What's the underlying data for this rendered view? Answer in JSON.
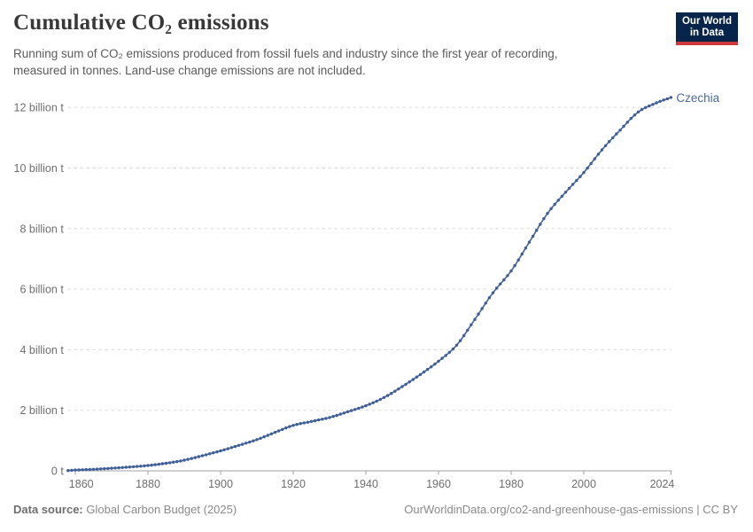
{
  "header": {
    "title": "Cumulative CO₂ emissions",
    "subtitle_lines": [
      "Running sum of CO₂ emissions produced from fossil fuels and industry since the first year of recording,",
      "measured in tonnes. Land-use change emissions are not included."
    ]
  },
  "logo": {
    "line1": "Our World",
    "line2": "in Data"
  },
  "footer": {
    "source_label": "Data source:",
    "source_value": " Global Carbon Budget (2025)",
    "credit": "OurWorldinData.org/co2-and-greenhouse-gas-emissions | CC BY"
  },
  "chart_data": {
    "type": "line",
    "title": "Cumulative CO₂ emissions",
    "entity_label": "Czechia",
    "y_unit": "billion tonnes",
    "xlim": [
      1858,
      2024
    ],
    "ylim": [
      0,
      12.33
    ],
    "grid": "dashed-horizontal",
    "legend_position": "end-of-line-label",
    "x_ticks": [
      {
        "year": 1860,
        "label": "1860"
      },
      {
        "year": 1880,
        "label": "1880"
      },
      {
        "year": 1900,
        "label": "1900"
      },
      {
        "year": 1920,
        "label": "1920"
      },
      {
        "year": 1940,
        "label": "1940"
      },
      {
        "year": 1960,
        "label": "1960"
      },
      {
        "year": 1980,
        "label": "1980"
      },
      {
        "year": 2000,
        "label": "2000"
      },
      {
        "year": 2024,
        "label": "2024"
      }
    ],
    "y_ticks": [
      {
        "value": 0,
        "label": "0 t"
      },
      {
        "value": 2,
        "label": "2 billion t"
      },
      {
        "value": 4,
        "label": "4 billion t"
      },
      {
        "value": 6,
        "label": "6 billion t"
      },
      {
        "value": 8,
        "label": "8 billion t"
      },
      {
        "value": 10,
        "label": "10 billion t"
      },
      {
        "value": 12,
        "label": "12 billion t"
      }
    ],
    "series": [
      {
        "name": "Czechia",
        "color": "#4C6A9C",
        "marker_color": "#3F5E97",
        "points": [
          [
            1858,
            0.01
          ],
          [
            1860,
            0.025
          ],
          [
            1865,
            0.05
          ],
          [
            1870,
            0.085
          ],
          [
            1875,
            0.125
          ],
          [
            1880,
            0.175
          ],
          [
            1885,
            0.25
          ],
          [
            1890,
            0.35
          ],
          [
            1895,
            0.5
          ],
          [
            1900,
            0.66
          ],
          [
            1905,
            0.84
          ],
          [
            1910,
            1.03
          ],
          [
            1915,
            1.27
          ],
          [
            1920,
            1.5
          ],
          [
            1925,
            1.63
          ],
          [
            1930,
            1.76
          ],
          [
            1935,
            1.95
          ],
          [
            1940,
            2.15
          ],
          [
            1945,
            2.42
          ],
          [
            1950,
            2.78
          ],
          [
            1955,
            3.18
          ],
          [
            1960,
            3.62
          ],
          [
            1965,
            4.15
          ],
          [
            1970,
            5.0
          ],
          [
            1975,
            5.88
          ],
          [
            1980,
            6.6
          ],
          [
            1985,
            7.55
          ],
          [
            1990,
            8.5
          ],
          [
            1995,
            9.2
          ],
          [
            2000,
            9.85
          ],
          [
            2005,
            10.6
          ],
          [
            2010,
            11.25
          ],
          [
            2015,
            11.85
          ],
          [
            2020,
            12.15
          ],
          [
            2024,
            12.33
          ]
        ]
      }
    ],
    "colors": {
      "grid": "#d9d9d9",
      "axis": "#a1a1a1",
      "tick_text": "#6e6e6e",
      "entity_label": "#4C6A9C"
    }
  }
}
